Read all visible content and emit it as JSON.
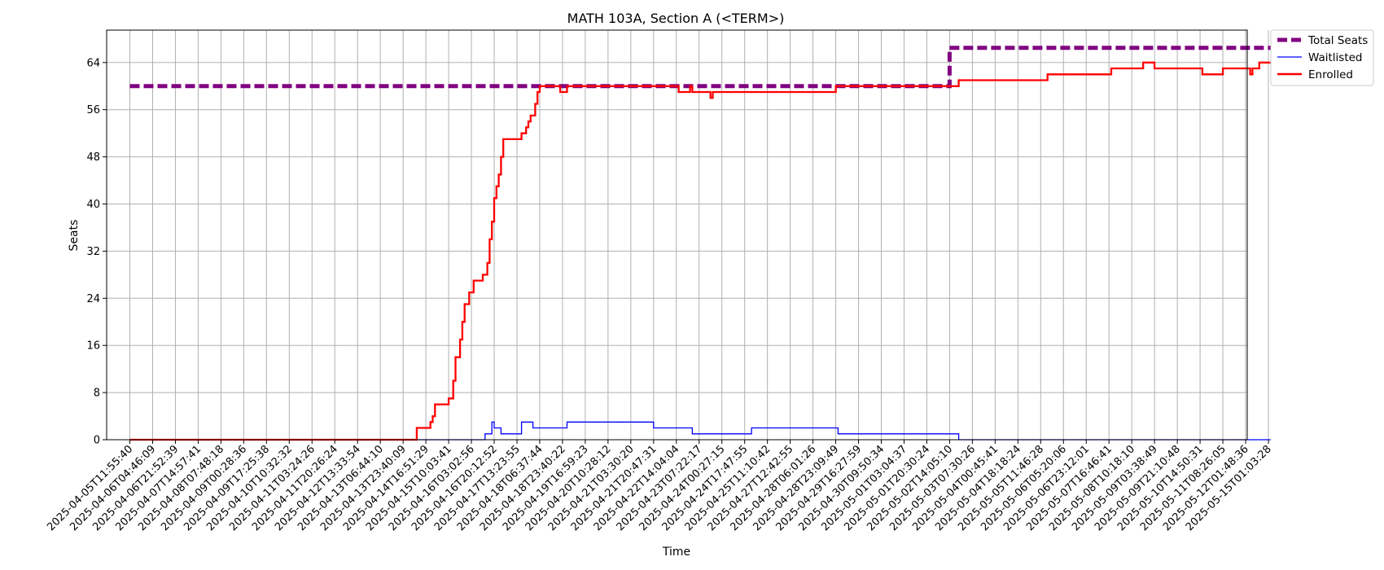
{
  "chart_data": {
    "type": "line",
    "title": "MATH 103A, Section A (<TERM>)",
    "xlabel": "Time",
    "ylabel": "Seats",
    "ylim": [
      0,
      69.5
    ],
    "yticks": [
      0,
      8,
      16,
      24,
      32,
      40,
      48,
      56,
      64
    ],
    "grid": true,
    "legend_position": "outside-top-right",
    "x_ticks": [
      "2025-04-05T11:55:40",
      "2025-04-06T04:46:09",
      "2025-04-06T21:52:39",
      "2025-04-07T14:57:41",
      "2025-04-08T07:48:18",
      "2025-04-09T00:28:36",
      "2025-04-09T17:25:38",
      "2025-04-10T10:32:32",
      "2025-04-11T03:24:26",
      "2025-04-11T20:26:24",
      "2025-04-12T13:33:54",
      "2025-04-13T06:44:10",
      "2025-04-13T23:40:09",
      "2025-04-14T16:51:29",
      "2025-04-15T10:03:41",
      "2025-04-16T03:02:56",
      "2025-04-16T20:12:52",
      "2025-04-17T13:23:55",
      "2025-04-18T06:37:44",
      "2025-04-18T23:40:22",
      "2025-04-19T16:59:23",
      "2025-04-20T10:28:12",
      "2025-04-21T03:30:20",
      "2025-04-21T20:47:31",
      "2025-04-22T14:04:04",
      "2025-04-23T07:22:17",
      "2025-04-24T00:27:15",
      "2025-04-24T17:47:55",
      "2025-04-25T11:10:42",
      "2025-04-27T12:42:55",
      "2025-04-28T06:01:26",
      "2025-04-28T23:09:49",
      "2025-04-29T16:27:59",
      "2025-04-30T09:50:34",
      "2025-05-01T03:04:37",
      "2025-05-01T20:30:24",
      "2025-05-02T14:05:10",
      "2025-05-03T07:30:26",
      "2025-05-04T00:45:41",
      "2025-05-04T18:18:24",
      "2025-05-05T11:46:28",
      "2025-05-06T05:20:06",
      "2025-05-06T23:12:01",
      "2025-05-07T16:46:41",
      "2025-05-08T10:18:10",
      "2025-05-09T03:38:49",
      "2025-05-09T21:10:48",
      "2025-05-10T14:50:31",
      "2025-05-11T08:26:05",
      "2025-05-12T01:48:36",
      "2025-05-15T01:03:28"
    ],
    "series": [
      {
        "name": "Total Seats",
        "color": "#800080",
        "style": "dashed-thick",
        "points": [
          [
            0,
            60
          ],
          [
            36,
            60
          ],
          [
            36,
            66.5
          ],
          [
            50.1,
            66.5
          ]
        ]
      },
      {
        "name": "Waitlisted",
        "color": "#0000ff",
        "style": "thin",
        "points": [
          [
            0,
            0
          ],
          [
            15.6,
            0
          ],
          [
            15.6,
            1
          ],
          [
            15.9,
            1
          ],
          [
            15.9,
            3
          ],
          [
            16,
            3
          ],
          [
            16,
            2
          ],
          [
            16.3,
            2
          ],
          [
            16.3,
            1
          ],
          [
            17.2,
            1
          ],
          [
            17.2,
            3
          ],
          [
            17.7,
            3
          ],
          [
            17.7,
            2
          ],
          [
            19.2,
            2
          ],
          [
            19.2,
            3
          ],
          [
            23,
            3
          ],
          [
            23,
            2
          ],
          [
            24.7,
            2
          ],
          [
            24.7,
            1
          ],
          [
            27.3,
            1
          ],
          [
            27.3,
            2
          ],
          [
            31.1,
            2
          ],
          [
            31.1,
            1
          ],
          [
            36.4,
            1
          ],
          [
            36.4,
            0
          ],
          [
            50.1,
            0
          ]
        ]
      },
      {
        "name": "Enrolled",
        "color": "#ff0000",
        "style": "solid",
        "points": [
          [
            0,
            0
          ],
          [
            12.6,
            0
          ],
          [
            12.6,
            2
          ],
          [
            13.2,
            2
          ],
          [
            13.2,
            3
          ],
          [
            13.3,
            3
          ],
          [
            13.3,
            4
          ],
          [
            13.4,
            4
          ],
          [
            13.4,
            6
          ],
          [
            14,
            6
          ],
          [
            14,
            7
          ],
          [
            14.2,
            7
          ],
          [
            14.2,
            10
          ],
          [
            14.3,
            10
          ],
          [
            14.3,
            14
          ],
          [
            14.5,
            14
          ],
          [
            14.5,
            17
          ],
          [
            14.6,
            17
          ],
          [
            14.6,
            20
          ],
          [
            14.7,
            20
          ],
          [
            14.7,
            23
          ],
          [
            14.9,
            23
          ],
          [
            14.9,
            25
          ],
          [
            15.1,
            25
          ],
          [
            15.1,
            27
          ],
          [
            15.5,
            27
          ],
          [
            15.5,
            28
          ],
          [
            15.7,
            28
          ],
          [
            15.7,
            30
          ],
          [
            15.8,
            30
          ],
          [
            15.8,
            34
          ],
          [
            15.9,
            34
          ],
          [
            15.9,
            37
          ],
          [
            16,
            37
          ],
          [
            16,
            41
          ],
          [
            16.1,
            41
          ],
          [
            16.1,
            43
          ],
          [
            16.2,
            43
          ],
          [
            16.2,
            45
          ],
          [
            16.3,
            45
          ],
          [
            16.3,
            48
          ],
          [
            16.4,
            48
          ],
          [
            16.4,
            51
          ],
          [
            17.2,
            51
          ],
          [
            17.2,
            52
          ],
          [
            17.4,
            52
          ],
          [
            17.4,
            53
          ],
          [
            17.5,
            53
          ],
          [
            17.5,
            54
          ],
          [
            17.6,
            54
          ],
          [
            17.6,
            55
          ],
          [
            17.8,
            55
          ],
          [
            17.8,
            57
          ],
          [
            17.9,
            57
          ],
          [
            17.9,
            59
          ],
          [
            18,
            59
          ],
          [
            18,
            60
          ],
          [
            18.9,
            60
          ],
          [
            18.9,
            59
          ],
          [
            19.2,
            59
          ],
          [
            19.2,
            60
          ],
          [
            24.1,
            60
          ],
          [
            24.1,
            59
          ],
          [
            24.6,
            59
          ],
          [
            24.6,
            60
          ],
          [
            24.7,
            60
          ],
          [
            24.7,
            59
          ],
          [
            25.5,
            59
          ],
          [
            25.5,
            58
          ],
          [
            25.6,
            58
          ],
          [
            25.6,
            59
          ],
          [
            31,
            59
          ],
          [
            31,
            60
          ],
          [
            36.4,
            60
          ],
          [
            36.4,
            61
          ],
          [
            40.3,
            61
          ],
          [
            40.3,
            62
          ],
          [
            43.1,
            62
          ],
          [
            43.1,
            63
          ],
          [
            44.5,
            63
          ],
          [
            44.5,
            64
          ],
          [
            45,
            64
          ],
          [
            45,
            63
          ],
          [
            47.1,
            63
          ],
          [
            47.1,
            62
          ],
          [
            48,
            62
          ],
          [
            48,
            63
          ],
          [
            49.2,
            63
          ],
          [
            49.2,
            62
          ],
          [
            49.3,
            62
          ],
          [
            49.3,
            63
          ],
          [
            49.6,
            63
          ],
          [
            49.6,
            64
          ],
          [
            50.1,
            64
          ]
        ]
      }
    ]
  }
}
